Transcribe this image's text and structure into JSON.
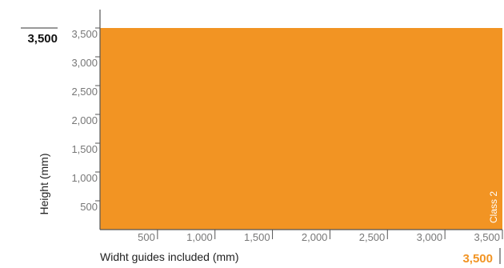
{
  "chart_data": {
    "type": "area",
    "xlabel": "Widht guides included (mm)",
    "ylabel": "Height (mm)",
    "x_ticks": [
      500,
      1000,
      1500,
      2000,
      2500,
      3000,
      3500
    ],
    "x_tick_labels": [
      "500",
      "1,000",
      "1,500",
      "2,000",
      "2,500",
      "3,000",
      "3,500"
    ],
    "y_ticks": [
      500,
      1000,
      1500,
      2000,
      2500,
      3000,
      3500
    ],
    "y_tick_labels": [
      "500",
      "1,000",
      "1,500",
      "2,000",
      "2,500",
      "3,000",
      "3,500"
    ],
    "xlim": [
      0,
      3500
    ],
    "ylim": [
      0,
      3500
    ],
    "series": [
      {
        "name": "Class 2",
        "color": "#f29423",
        "x": [
          0,
          3500
        ],
        "y": [
          3500,
          3500
        ]
      }
    ],
    "max_height_label": "3,500",
    "max_width_label": "3,500",
    "max_width_color": "#f29423",
    "grid": false
  }
}
